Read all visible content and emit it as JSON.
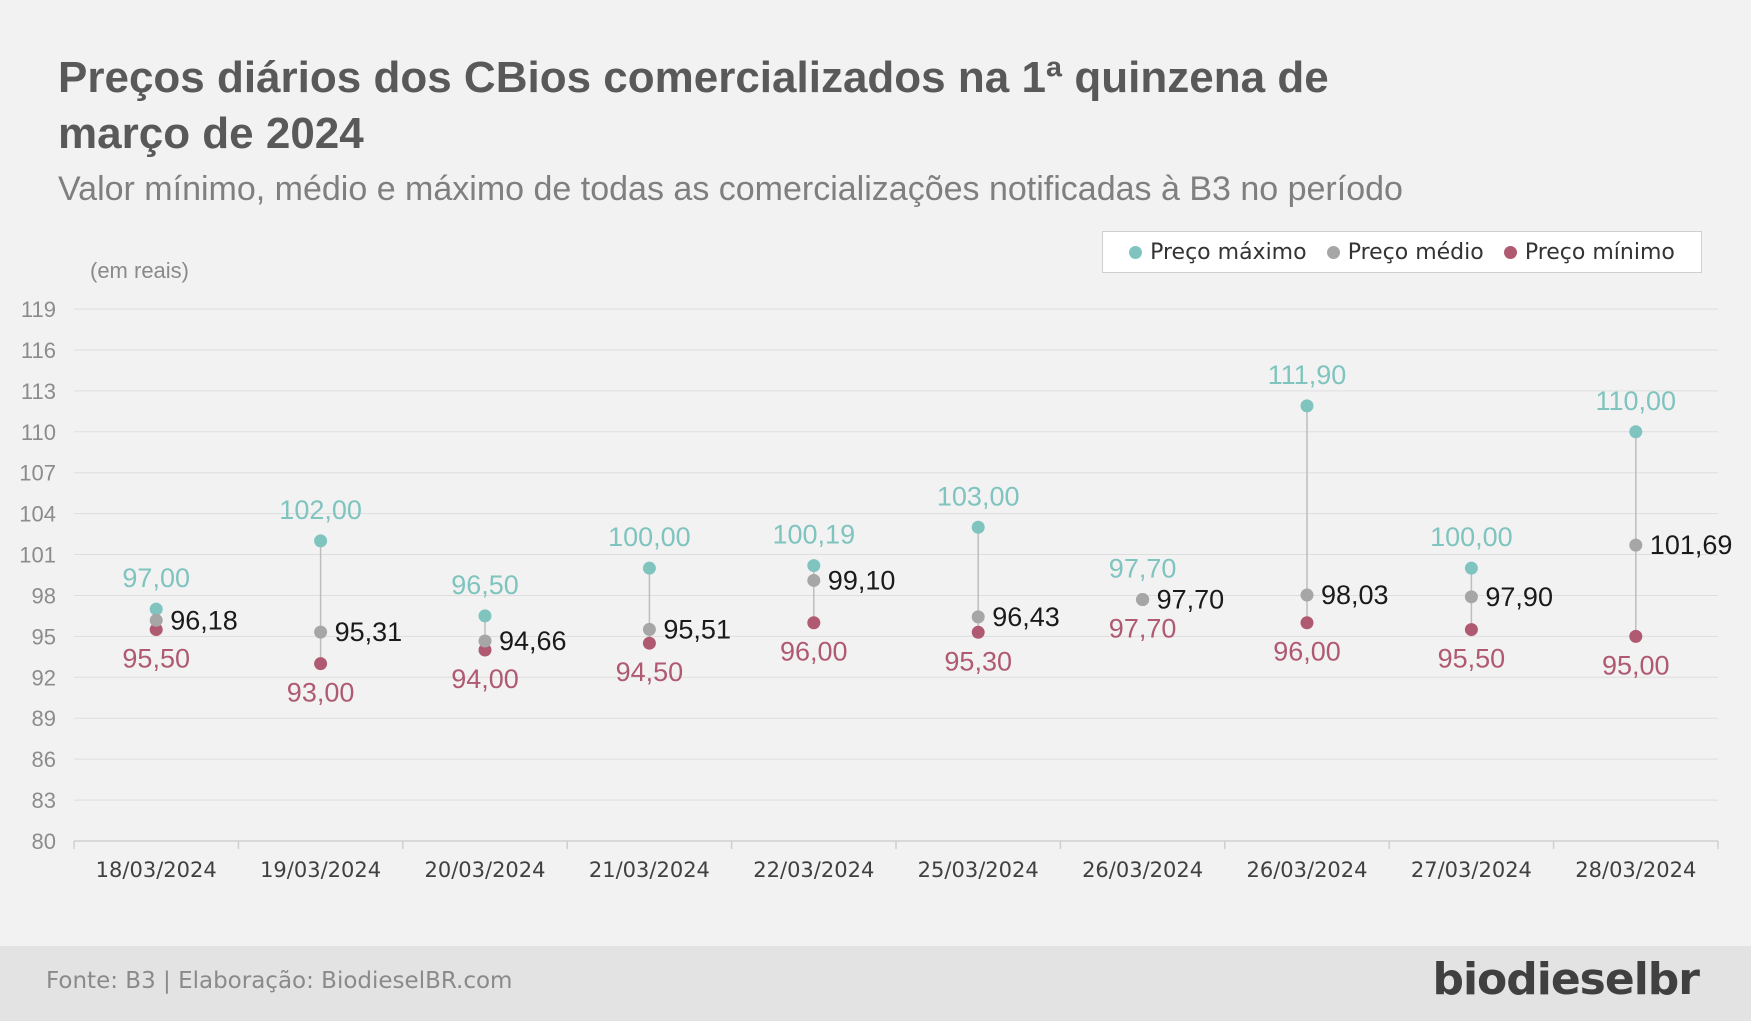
{
  "header": {
    "title": "Preços diários dos CBios comercializados na 1ª quinzena de março de 2024",
    "subtitle": "Valor mínimo, médio e máximo de todas as comercializações notificadas à B3 no período"
  },
  "footer": {
    "source": "Fonte: B3 | Elaboração: BiodieselBR.com",
    "brand": "biodieselbr"
  },
  "colors": {
    "max": "#7fc4bf",
    "avg": "#a6a6a6",
    "min": "#b05a72",
    "avg_label": "#1a1a1a",
    "grid": "#dedede",
    "axis_text": "#8c8c8c",
    "connector": "#bdbdbd"
  },
  "chart_data": {
    "type": "scatter",
    "title": "Preços diários dos CBios comercializados na 1ª quinzena de março de 2024",
    "subtitle": "Valor mínimo, médio e máximo de todas as comercializações notificadas à B3 no período",
    "ylabel": "(em reais)",
    "ylim": [
      80,
      119
    ],
    "yticks": [
      80,
      83,
      86,
      89,
      92,
      95,
      98,
      101,
      104,
      107,
      110,
      113,
      116,
      119
    ],
    "grid": true,
    "legend_position": "top-right",
    "categories": [
      "18/03/2024",
      "19/03/2024",
      "20/03/2024",
      "21/03/2024",
      "22/03/2024",
      "25/03/2024",
      "26/03/2024",
      "26/03/2024",
      "27/03/2024",
      "28/03/2024"
    ],
    "series": [
      {
        "name": "Preço máximo",
        "values": [
          97.0,
          102.0,
          96.5,
          100.0,
          100.19,
          103.0,
          97.7,
          111.9,
          100.0,
          110.0
        ],
        "labels": [
          "97,00",
          "102,00",
          "96,50",
          "100,00",
          "100,19",
          "103,00",
          "97,70",
          "111,90",
          "100,00",
          "110,00"
        ]
      },
      {
        "name": "Preço médio",
        "values": [
          96.18,
          95.31,
          94.66,
          95.51,
          99.1,
          96.43,
          97.7,
          98.03,
          97.9,
          101.69
        ],
        "labels": [
          "96,18",
          "95,31",
          "94,66",
          "95,51",
          "99,10",
          "96,43",
          "97,70",
          "98,03",
          "97,90",
          "101,69"
        ]
      },
      {
        "name": "Preço mínimo",
        "values": [
          95.5,
          93.0,
          94.0,
          94.5,
          96.0,
          95.3,
          97.7,
          96.0,
          95.5,
          95.0
        ],
        "labels": [
          "95,50",
          "93,00",
          "94,00",
          "94,50",
          "96,00",
          "95,30",
          "97,70",
          "96,00",
          "95,50",
          "95,00"
        ]
      }
    ]
  }
}
